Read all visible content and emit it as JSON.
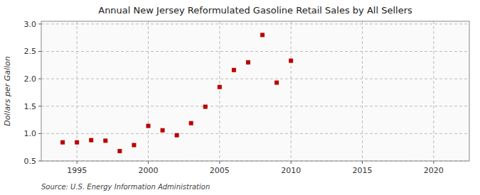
{
  "chart_data": {
    "type": "scatter",
    "title": "Annual New Jersey Reformulated Gasoline Retail Sales by All Sellers",
    "ylabel": "Dollars per Gallon",
    "source": "Source: U.S. Energy Information Administration",
    "x": [
      1994,
      1995,
      1996,
      1997,
      1998,
      1999,
      2000,
      2001,
      2002,
      2003,
      2004,
      2005,
      2006,
      2007,
      2008,
      2009,
      2010
    ],
    "values": [
      0.84,
      0.84,
      0.88,
      0.87,
      0.68,
      0.79,
      1.14,
      1.06,
      0.97,
      1.19,
      1.49,
      1.85,
      2.16,
      2.3,
      2.8,
      1.93,
      2.33
    ],
    "color": "#bb0000",
    "marker": "square",
    "xlim": [
      1992.5,
      2022.5
    ],
    "ylim": [
      0.5,
      3.05
    ],
    "xticks": [
      1995,
      2000,
      2005,
      2010,
      2015,
      2020
    ],
    "yticks": [
      0.5,
      {
        "value": 1,
        "label": "1.0"
      },
      1.5,
      {
        "value": 2,
        "label": "2.0"
      },
      2.5,
      {
        "value": 3,
        "label": "3.0"
      }
    ],
    "grid": true
  }
}
